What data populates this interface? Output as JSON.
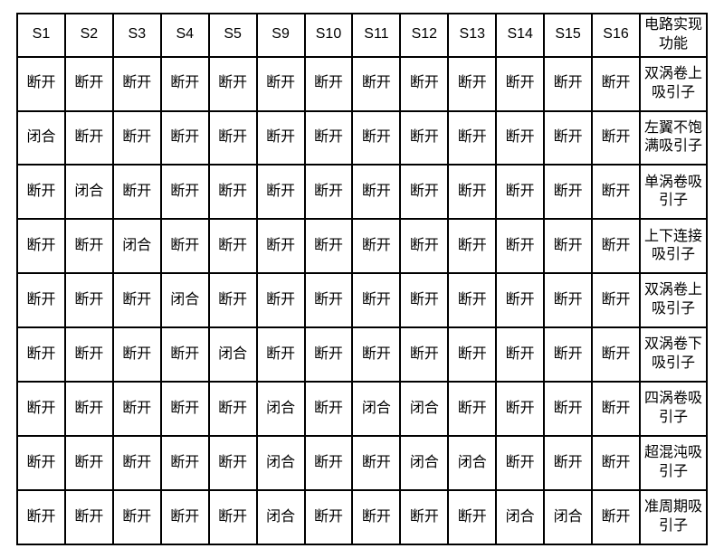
{
  "table": {
    "columns": [
      "S1",
      "S2",
      "S3",
      "S4",
      "S5",
      "S9",
      "S10",
      "S11",
      "S12",
      "S13",
      "S14",
      "S15",
      "S16",
      "电路实现功能"
    ],
    "rows": [
      {
        "cells": [
          "断开",
          "断开",
          "断开",
          "断开",
          "断开",
          "断开",
          "断开",
          "断开",
          "断开",
          "断开",
          "断开",
          "断开",
          "断开"
        ],
        "func": "双涡卷上吸引子"
      },
      {
        "cells": [
          "闭合",
          "断开",
          "断开",
          "断开",
          "断开",
          "断开",
          "断开",
          "断开",
          "断开",
          "断开",
          "断开",
          "断开",
          "断开"
        ],
        "func": "左翼不饱满吸引子"
      },
      {
        "cells": [
          "断开",
          "闭合",
          "断开",
          "断开",
          "断开",
          "断开",
          "断开",
          "断开",
          "断开",
          "断开",
          "断开",
          "断开",
          "断开"
        ],
        "func": "单涡卷吸引子"
      },
      {
        "cells": [
          "断开",
          "断开",
          "闭合",
          "断开",
          "断开",
          "断开",
          "断开",
          "断开",
          "断开",
          "断开",
          "断开",
          "断开",
          "断开"
        ],
        "func": "上下连接吸引子"
      },
      {
        "cells": [
          "断开",
          "断开",
          "断开",
          "闭合",
          "断开",
          "断开",
          "断开",
          "断开",
          "断开",
          "断开",
          "断开",
          "断开",
          "断开"
        ],
        "func": "双涡卷上吸引子"
      },
      {
        "cells": [
          "断开",
          "断开",
          "断开",
          "断开",
          "闭合",
          "断开",
          "断开",
          "断开",
          "断开",
          "断开",
          "断开",
          "断开",
          "断开"
        ],
        "func": "双涡卷下吸引子"
      },
      {
        "cells": [
          "断开",
          "断开",
          "断开",
          "断开",
          "断开",
          "闭合",
          "断开",
          "闭合",
          "闭合",
          "断开",
          "断开",
          "断开",
          "断开"
        ],
        "func": "四涡卷吸引子"
      },
      {
        "cells": [
          "断开",
          "断开",
          "断开",
          "断开",
          "断开",
          "闭合",
          "断开",
          "断开",
          "闭合",
          "闭合",
          "断开",
          "断开",
          "断开"
        ],
        "func": "超混沌吸引子"
      },
      {
        "cells": [
          "断开",
          "断开",
          "断开",
          "断开",
          "断开",
          "闭合",
          "断开",
          "断开",
          "断开",
          "断开",
          "闭合",
          "闭合",
          "断开"
        ],
        "func": "准周期吸引子"
      }
    ],
    "style": {
      "border_color": "#000000",
      "border_width": 2,
      "background_color": "#ffffff",
      "font_size": 16,
      "header_font": "Arial",
      "body_font": "SimSun",
      "func_col_width": 74
    }
  }
}
